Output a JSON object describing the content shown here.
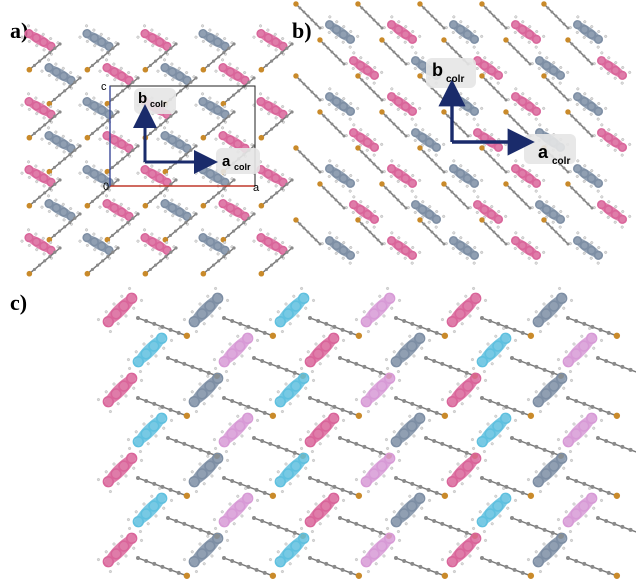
{
  "panels": {
    "a": {
      "label": "a)",
      "cell_axes": {
        "a": "a",
        "c": "c",
        "origin": "0"
      },
      "vector_a": "a",
      "vector_b": "b",
      "subscript": "colr"
    },
    "b": {
      "label": "b)",
      "vector_a": "a",
      "vector_b": "b",
      "subscript": "colr"
    },
    "c": {
      "label": "c)"
    }
  },
  "colors": {
    "pink": "#d9659a",
    "lightpink": "#d79ad6",
    "steel": "#7d8ea4",
    "cyan": "#5fc0df",
    "carbon": "#8a8a8a",
    "bromine": "#c98a2a",
    "arrow": "#1a2b6b",
    "cell_red": "#c0392b",
    "cell_blue": "#3a4a9a"
  }
}
